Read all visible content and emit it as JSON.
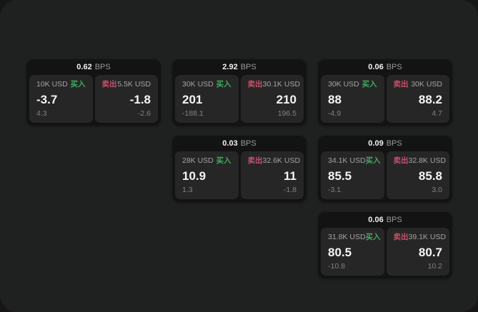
{
  "colors": {
    "buy_green": "#45a862",
    "sell_red": "#c8506c",
    "window_bg": "#1f2020",
    "card_bg": "#131313",
    "panel_bg": "#262626"
  },
  "labels": {
    "bps_unit": "BPS",
    "buy": "买入",
    "sell": "卖出"
  },
  "cards": [
    {
      "bps": "0.62",
      "unit": "BPS",
      "buy": {
        "amount": "10K USD",
        "label": "买入",
        "price": "-3.7",
        "change": "4.3"
      },
      "sell": {
        "label": "卖出",
        "amount": "5.5K USD",
        "price": "-1.8",
        "change": "-2.6"
      }
    },
    {
      "bps": "2.92",
      "unit": "BPS",
      "buy": {
        "amount": "30K USD",
        "label": "买入",
        "price": "201",
        "change": "-188.1"
      },
      "sell": {
        "label": "卖出",
        "amount": "30.1K USD",
        "price": "210",
        "change": "196.5"
      }
    },
    {
      "bps": "0.06",
      "unit": "BPS",
      "buy": {
        "amount": "30K USD",
        "label": "买入",
        "price": "88",
        "change": "-4.9"
      },
      "sell": {
        "label": "卖出",
        "amount": "30K USD",
        "price": "88.2",
        "change": "4.7"
      }
    },
    {
      "bps": "0.03",
      "unit": "BPS",
      "buy": {
        "amount": "28K USD",
        "label": "买入",
        "price": "10.9",
        "change": "1.3"
      },
      "sell": {
        "label": "卖出",
        "amount": "32.6K USD",
        "price": "11",
        "change": "-1.8"
      }
    },
    {
      "bps": "0.09",
      "unit": "BPS",
      "buy": {
        "amount": "34.1K USD",
        "label": "买入",
        "price": "85.5",
        "change": "-3.1"
      },
      "sell": {
        "label": "卖出",
        "amount": "32.8K USD",
        "price": "85.8",
        "change": "3.0"
      }
    },
    {
      "bps": "0.06",
      "unit": "BPS",
      "buy": {
        "amount": "31.8K USD",
        "label": "买入",
        "price": "80.5",
        "change": "-10.8"
      },
      "sell": {
        "label": "卖出",
        "amount": "39.1K USD",
        "price": "80.7",
        "change": "10.2"
      }
    }
  ]
}
